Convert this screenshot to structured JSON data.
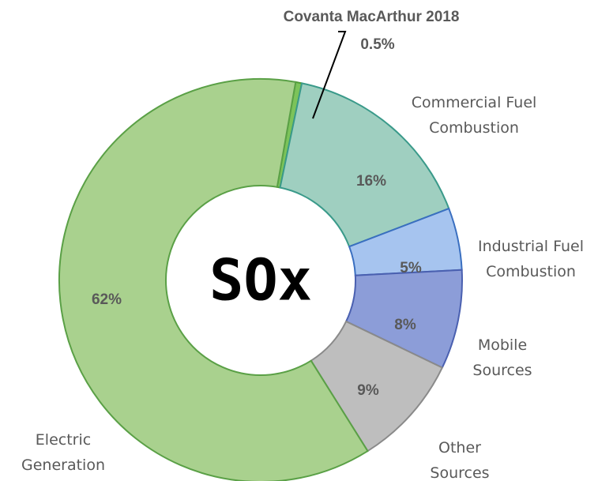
{
  "chart_data": {
    "type": "pie",
    "center_label": "SOx",
    "categories": [
      "Covanta MacArthur 2018",
      "Commercial Fuel Combustion",
      "Industrial Fuel Combustion",
      "Mobile Sources",
      "Other Sources",
      "Electric Generation"
    ],
    "values": [
      0.5,
      16,
      5,
      8,
      9,
      62
    ],
    "value_labels": [
      "0.5%",
      "16%",
      "5%",
      "8%",
      "9%",
      "62%"
    ],
    "colors": [
      "#7cc35a",
      "#9fcfc0",
      "#a6c4ef",
      "#8c9dd8",
      "#bebebe",
      "#a9d18e"
    ],
    "edge_colors": [
      "#4f9a35",
      "#3a9a8a",
      "#3a6fc0",
      "#4a60b0",
      "#8a8a8a",
      "#5aa046"
    ]
  }
}
